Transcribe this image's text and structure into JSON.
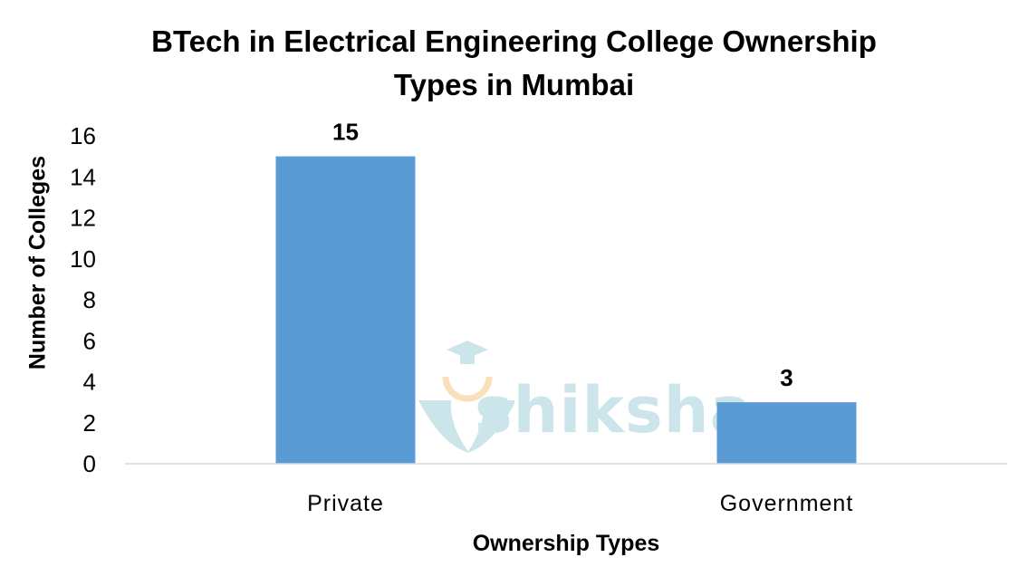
{
  "chart_data": {
    "type": "bar",
    "title_line1": "BTech in Electrical Engineering College Ownership",
    "title_line2": "Types in Mumbai",
    "xlabel": "Ownership Types",
    "ylabel": "Number of Colleges",
    "categories": [
      "Private",
      "Government"
    ],
    "values": [
      15,
      3
    ],
    "ylim": [
      0,
      16
    ],
    "yticks": [
      0,
      2,
      4,
      6,
      8,
      10,
      12,
      14,
      16
    ],
    "bar_color": "#5b9bd5",
    "grid": false,
    "data_labels": true
  },
  "watermark": {
    "text": "shiksha",
    "color": "#6fb7c8"
  }
}
